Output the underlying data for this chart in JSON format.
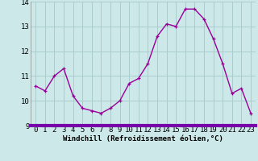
{
  "x": [
    0,
    1,
    2,
    3,
    4,
    5,
    6,
    7,
    8,
    9,
    10,
    11,
    12,
    13,
    14,
    15,
    16,
    17,
    18,
    19,
    20,
    21,
    22,
    23
  ],
  "y": [
    10.6,
    10.4,
    11.0,
    11.3,
    10.2,
    9.7,
    9.6,
    9.5,
    9.7,
    10.0,
    10.7,
    10.9,
    11.5,
    12.6,
    13.1,
    13.0,
    13.7,
    13.7,
    13.3,
    12.5,
    11.5,
    10.3,
    10.5,
    9.5
  ],
  "line_color": "#990099",
  "marker": "+",
  "marker_color": "#990099",
  "bg_color": "#cce8e8",
  "grid_color": "#aacccc",
  "bar_color": "#7700aa",
  "xlabel": "Windchill (Refroidissement éolien,°C)",
  "ylabel": "",
  "ylim": [
    9,
    14
  ],
  "xlim": [
    -0.5,
    23.5
  ],
  "yticks": [
    9,
    10,
    11,
    12,
    13,
    14
  ],
  "xticks": [
    0,
    1,
    2,
    3,
    4,
    5,
    6,
    7,
    8,
    9,
    10,
    11,
    12,
    13,
    14,
    15,
    16,
    17,
    18,
    19,
    20,
    21,
    22,
    23
  ],
  "xlabel_fontsize": 6.5,
  "tick_fontsize": 6.5,
  "line_width": 1.0,
  "marker_size": 3.5
}
